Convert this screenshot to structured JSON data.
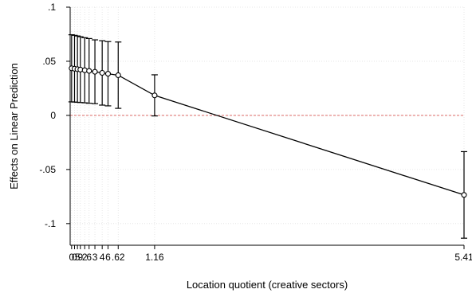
{
  "chart_data": {
    "type": "line",
    "title": "",
    "xlabel": "Location quotient (creative sectors)",
    "ylabel": "Effects on Linear Prediction",
    "xlim": [
      0,
      5.41
    ],
    "ylim": [
      -0.12,
      0.1
    ],
    "y_ticks": [
      {
        "value": 0.1,
        "label": ".1"
      },
      {
        "value": 0.05,
        "label": ".05"
      },
      {
        "value": 0,
        "label": "0"
      },
      {
        "value": -0.05,
        "label": "-.05"
      },
      {
        "value": -0.1,
        "label": "-.1"
      }
    ],
    "x_ticks": [
      {
        "value": 0.02,
        "label": "0"
      },
      {
        "value": 0.06,
        "label": "0"
      },
      {
        "value": 0.1,
        "label": "5"
      },
      {
        "value": 0.14,
        "label": "9"
      },
      {
        "value": 0.2,
        "label": "2"
      },
      {
        "value": 0.26,
        "label": "6"
      },
      {
        "value": 0.34,
        "label": "3"
      },
      {
        "value": 0.44,
        "label": "4"
      },
      {
        "value": 0.52,
        "label": "6"
      },
      {
        "value": 0.66,
        "label": ".62"
      },
      {
        "value": 1.16,
        "label": "1.16"
      },
      {
        "value": 5.41,
        "label": "5.41"
      }
    ],
    "reference_line": {
      "y": 0,
      "color": "#d9534f"
    },
    "grid": true,
    "legend": "none",
    "series": [
      {
        "x": [
          0.02,
          0.06,
          0.1,
          0.14,
          0.2,
          0.26,
          0.34,
          0.44,
          0.52,
          0.66,
          1.16,
          5.41
        ],
        "y": [
          0.0435,
          0.0431,
          0.0427,
          0.0423,
          0.0417,
          0.0411,
          0.0403,
          0.0393,
          0.0385,
          0.0371,
          0.0185,
          -0.0735
        ],
        "lower": [
          0.0125,
          0.0123,
          0.0121,
          0.0119,
          0.0116,
          0.0112,
          0.0108,
          0.0095,
          0.0088,
          0.0065,
          -0.0005,
          -0.1135
        ],
        "upper": [
          0.0745,
          0.074,
          0.0734,
          0.0727,
          0.0718,
          0.071,
          0.0698,
          0.069,
          0.0682,
          0.0678,
          0.0375,
          -0.0335
        ]
      }
    ],
    "colors": {
      "line": "#000000",
      "grid": "#e0e0e0",
      "reference": "#d9534f"
    }
  }
}
